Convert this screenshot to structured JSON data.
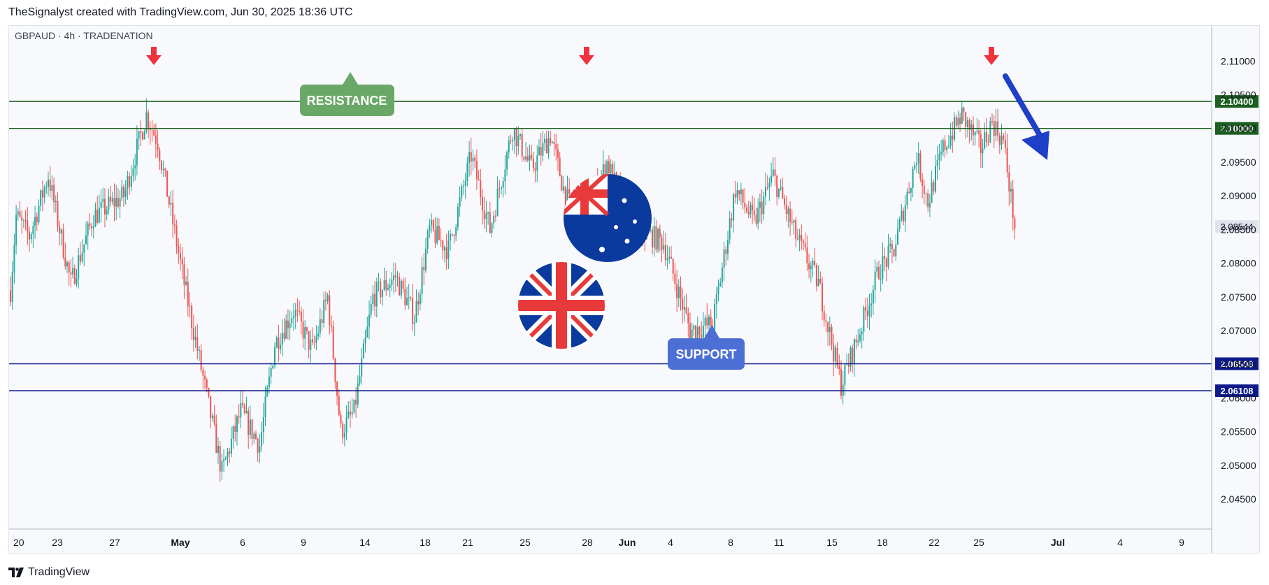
{
  "header": {
    "credit": "TheSignalyst created with TradingView.com, Jun 30, 2025 18:36 UTC"
  },
  "footer": {
    "brand": "TradingView",
    "logo_icon": "tradingview-logo-icon"
  },
  "colors": {
    "up": "#26a69a",
    "down": "#ef5350",
    "resistance_line": "#1b5e20",
    "support_line": "#0d1a8c",
    "resistance_label_bg": "#6aa867",
    "support_label_bg": "#4c6fd6",
    "arrow_red": "#f0323c",
    "arrow_blue": "#1e40c8",
    "price_tag_current": "#e0e3eb"
  },
  "chart_data": {
    "type": "candlestick",
    "symbol_info": "GBPAUD · 4h · TRADENATION",
    "y_range": [
      2.042,
      2.112
    ],
    "y_ticks": [
      "2.11000",
      "2.10500",
      "2.10000",
      "2.09500",
      "2.09000",
      "2.08500",
      "2.08000",
      "2.07500",
      "2.07000",
      "2.06500",
      "2.06000",
      "2.05500",
      "2.05000",
      "2.04500"
    ],
    "x_labels": [
      "20",
      "23",
      "27",
      "May",
      "6",
      "9",
      "14",
      "18",
      "21",
      "25",
      "28",
      "Jun",
      "4",
      "8",
      "11",
      "15",
      "18",
      "22",
      "25",
      "Jul",
      "4",
      "9"
    ],
    "horizontal_levels": [
      {
        "name": "resistance-upper",
        "value": 2.104,
        "label": "2.10400",
        "kind": "resistance"
      },
      {
        "name": "resistance-lower",
        "value": 2.1,
        "label": "2.10000",
        "kind": "resistance"
      },
      {
        "name": "support-upper",
        "value": 2.06508,
        "label": "2.06508",
        "kind": "support"
      },
      {
        "name": "support-lower",
        "value": 2.06108,
        "label": "2.06108",
        "kind": "support"
      }
    ],
    "current_price": {
      "value": 2.08544,
      "label": "2.08544"
    },
    "annotations": {
      "resistance_label": "RESISTANCE",
      "support_label": "SUPPORT",
      "flag_icons": [
        "uk-flag-icon",
        "australia-flag-icon"
      ],
      "down_arrows_at_resistance": 3,
      "trend_arrow": "down"
    },
    "price_path": [
      {
        "t": 0,
        "p": 2.076
      },
      {
        "t": 3,
        "p": 2.087
      },
      {
        "t": 10,
        "p": 2.084
      },
      {
        "t": 20,
        "p": 2.093
      },
      {
        "t": 32,
        "p": 2.077
      },
      {
        "t": 44,
        "p": 2.087
      },
      {
        "t": 60,
        "p": 2.09
      },
      {
        "t": 72,
        "p": 2.102
      },
      {
        "t": 78,
        "p": 2.098
      },
      {
        "t": 92,
        "p": 2.077
      },
      {
        "t": 102,
        "p": 2.063
      },
      {
        "t": 112,
        "p": 2.049
      },
      {
        "t": 122,
        "p": 2.058
      },
      {
        "t": 132,
        "p": 2.053
      },
      {
        "t": 140,
        "p": 2.068
      },
      {
        "t": 150,
        "p": 2.073
      },
      {
        "t": 160,
        "p": 2.067
      },
      {
        "t": 168,
        "p": 2.075
      },
      {
        "t": 175,
        "p": 2.055
      },
      {
        "t": 182,
        "p": 2.058
      },
      {
        "t": 192,
        "p": 2.075
      },
      {
        "t": 204,
        "p": 2.078
      },
      {
        "t": 214,
        "p": 2.072
      },
      {
        "t": 222,
        "p": 2.085
      },
      {
        "t": 232,
        "p": 2.082
      },
      {
        "t": 244,
        "p": 2.096
      },
      {
        "t": 254,
        "p": 2.085
      },
      {
        "t": 266,
        "p": 2.1
      },
      {
        "t": 276,
        "p": 2.094
      },
      {
        "t": 286,
        "p": 2.099
      },
      {
        "t": 294,
        "p": 2.09
      },
      {
        "t": 302,
        "p": 2.085
      },
      {
        "t": 316,
        "p": 2.095
      },
      {
        "t": 328,
        "p": 2.086
      },
      {
        "t": 346,
        "p": 2.083
      },
      {
        "t": 360,
        "p": 2.07
      },
      {
        "t": 372,
        "p": 2.071
      },
      {
        "t": 384,
        "p": 2.091
      },
      {
        "t": 394,
        "p": 2.086
      },
      {
        "t": 404,
        "p": 2.093
      },
      {
        "t": 416,
        "p": 2.084
      },
      {
        "t": 428,
        "p": 2.077
      },
      {
        "t": 440,
        "p": 2.062
      },
      {
        "t": 450,
        "p": 2.07
      },
      {
        "t": 460,
        "p": 2.079
      },
      {
        "t": 468,
        "p": 2.082
      },
      {
        "t": 480,
        "p": 2.096
      },
      {
        "t": 486,
        "p": 2.089
      },
      {
        "t": 494,
        "p": 2.097
      },
      {
        "t": 504,
        "p": 2.102
      },
      {
        "t": 514,
        "p": 2.097
      },
      {
        "t": 520,
        "p": 2.101
      },
      {
        "t": 526,
        "p": 2.098
      },
      {
        "t": 532,
        "p": 2.0855
      }
    ]
  }
}
